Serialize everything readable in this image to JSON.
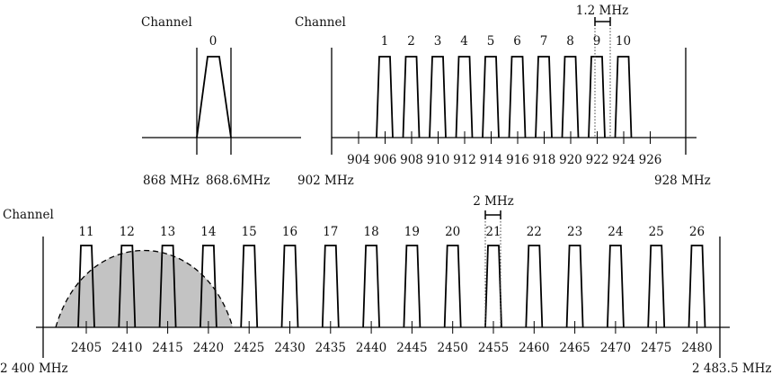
{
  "band_868": {
    "heading": "Channel",
    "channels": [
      {
        "label": "0"
      }
    ],
    "left_label": "868 MHz",
    "right_label": "868.6MHz"
  },
  "band_915": {
    "heading": "Channel",
    "channels": [
      {
        "label": "1"
      },
      {
        "label": "2"
      },
      {
        "label": "3"
      },
      {
        "label": "4"
      },
      {
        "label": "5"
      },
      {
        "label": "6"
      },
      {
        "label": "7"
      },
      {
        "label": "8"
      },
      {
        "label": "9"
      },
      {
        "label": "10"
      }
    ],
    "ticks": [
      "904",
      "906",
      "908",
      "910",
      "912",
      "914",
      "916",
      "918",
      "920",
      "922",
      "924",
      "926"
    ],
    "left_label": "902 MHz",
    "right_label": "928 MHz",
    "bandwidth_label": "1.2 MHz"
  },
  "band_2400": {
    "heading": "Channel",
    "channels": [
      {
        "label": "11"
      },
      {
        "label": "12"
      },
      {
        "label": "13"
      },
      {
        "label": "14"
      },
      {
        "label": "15"
      },
      {
        "label": "16"
      },
      {
        "label": "17"
      },
      {
        "label": "18"
      },
      {
        "label": "19"
      },
      {
        "label": "20"
      },
      {
        "label": "21"
      },
      {
        "label": "22"
      },
      {
        "label": "23"
      },
      {
        "label": "24"
      },
      {
        "label": "25"
      },
      {
        "label": "26"
      }
    ],
    "ticks": [
      "2405",
      "2410",
      "2415",
      "2420",
      "2425",
      "2430",
      "2435",
      "2440",
      "2445",
      "2450",
      "2455",
      "2460",
      "2465",
      "2470",
      "2475",
      "2480"
    ],
    "left_label": "2 400 MHz",
    "right_label": "2 483.5 MHz",
    "bandwidth_label": "2 MHz"
  }
}
